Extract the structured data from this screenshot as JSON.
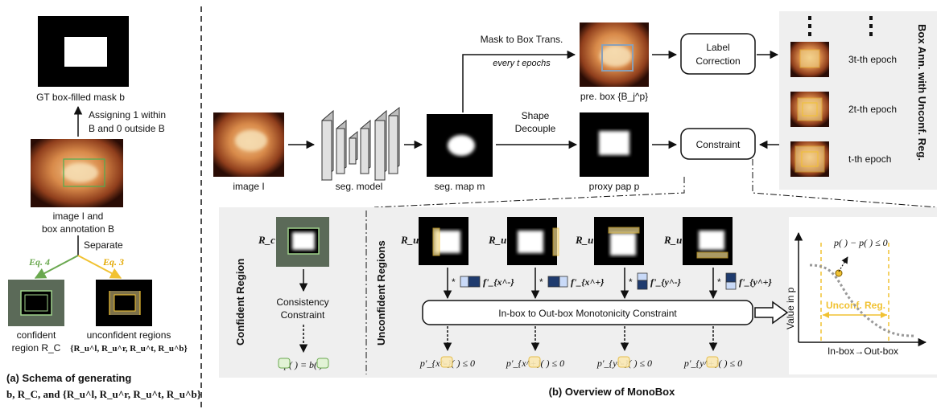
{
  "left_panel": {
    "gt_mask_label": "GT box-filled mask b",
    "assign_line1": "Assigning 1 within",
    "assign_line2": "B and 0 outside B",
    "image_label_line1": "image I and",
    "image_label_line2": "box annotation B",
    "separate_label": "Separate",
    "eq4": "Eq. 4",
    "eq3": "Eq. 3",
    "confident_line1": "confident",
    "confident_line2": "region R_C",
    "unconfident_line1": "unconfident regions",
    "unconfident_line2": "{R_u^l, R_u^r, R_u^t, R_u^b}",
    "caption_line1": "(a) Schema of generating",
    "caption_line2": "b, R_C, and {R_u^l, R_u^r, R_u^t, R_u^b}"
  },
  "top_pipeline": {
    "image_label": "image I",
    "seg_model_label": "seg. model",
    "seg_map_label": "seg. map m",
    "proxy_label": "proxy pap p",
    "mask_to_box": "Mask to Box Trans.",
    "every_t": "every t epochs",
    "pre_box_label": "pre. box {B_j^p}",
    "shape_decouple_line1": "Shape",
    "shape_decouple_line2": "Decouple",
    "label_correction_line1": "Label",
    "label_correction_line2": "Correction",
    "constraint_label": "Constraint",
    "side_title": "Box Ann. with Unconf. Reg.",
    "epochs": [
      "3t-th epoch",
      "2t-th epoch",
      "t-th epoch"
    ]
  },
  "bottom_panel": {
    "confident_region_title": "Confident Region",
    "rc_label": "R_c",
    "consistency_line1": "Consistency",
    "consistency_line2": "Constraint",
    "confident_eq": "p( ) = b( )",
    "unconfident_regions_title": "Unconfident Regions",
    "region_labels": [
      "R_u^l",
      "R_u^r",
      "R_u^t",
      "R_u^b"
    ],
    "f_labels": [
      "f'_{x^-}",
      "f'_{x^+}",
      "f'_{y^-}",
      "f'_{y^+}"
    ],
    "monotonicity_label": "In-box to Out-box Monotonicity Constraint",
    "inequalities": [
      "p'_{x^-}( ) ≤ 0",
      "p'_{x^+}( ) ≤ 0",
      "p'_{y^-}( ) ≤ 0",
      "p'_{y^+}( ) ≤ 0"
    ],
    "plot_ylabel": "Value in p",
    "plot_xlabel": "In-box→Out-box",
    "plot_eq": "p( ) − p( ) ≤ 0",
    "unconf_reg": "Unconf. Reg."
  },
  "caption_b": "(b) Overview of MonoBox",
  "colors": {
    "green": "#6aa84f",
    "yellow": "#f1c232",
    "gray_panel": "#efefef",
    "dark_blue": "#1f3b6e",
    "light_blue": "#c9daf8"
  }
}
